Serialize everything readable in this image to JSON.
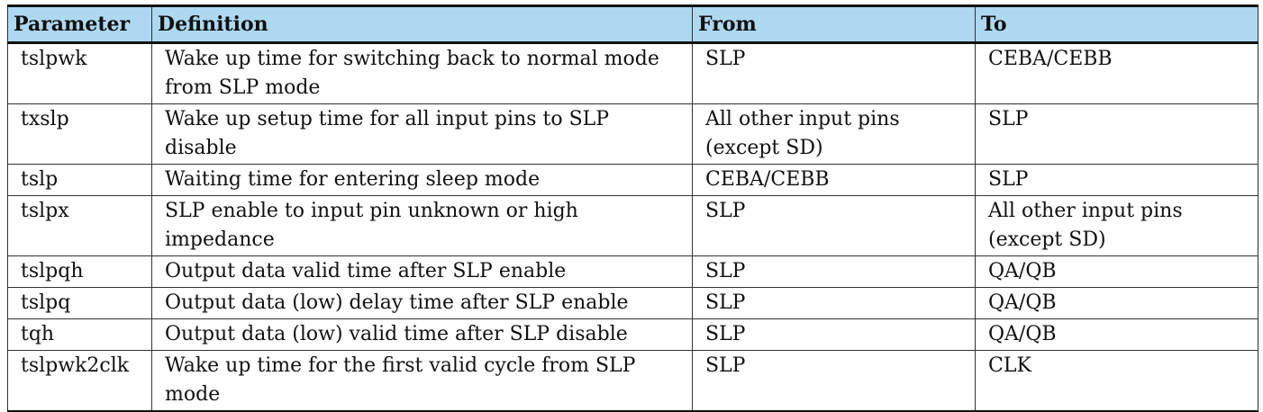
{
  "table": {
    "headers": [
      "Parameter",
      "Definition",
      "From",
      "To"
    ],
    "rows": [
      {
        "parameter": "tslpwk",
        "definition": "Wake up time for switching back to normal mode from SLP mode",
        "from": "SLP",
        "to": "CEBA/CEBB"
      },
      {
        "parameter": "txslp",
        "definition": "Wake up setup time for all input pins to SLP disable",
        "from": "All other input pins (except SD)",
        "to": "SLP"
      },
      {
        "parameter": "tslp",
        "definition": "Waiting time for entering sleep mode",
        "from": "CEBA/CEBB",
        "to": "SLP"
      },
      {
        "parameter": "tslpx",
        "definition": "SLP enable to input pin unknown or high impedance",
        "from": "SLP",
        "to": "All other input pins (except SD)"
      },
      {
        "parameter": "tslpqh",
        "definition": "Output data valid time after SLP enable",
        "from": "SLP",
        "to": "QA/QB"
      },
      {
        "parameter": "tslpq",
        "definition": "Output data (low) delay time after SLP enable",
        "from": "SLP",
        "to": "QA/QB"
      },
      {
        "parameter": "tqh",
        "definition": "Output data (low) valid time after SLP disable",
        "from": "SLP",
        "to": "QA/QB"
      },
      {
        "parameter": "tslpwk2clk",
        "definition": "Wake up time for the first valid cycle from SLP mode",
        "from": "SLP",
        "to": "CLK"
      }
    ],
    "colors": {
      "header_bg": "#add8f0",
      "border": "#333333"
    }
  }
}
